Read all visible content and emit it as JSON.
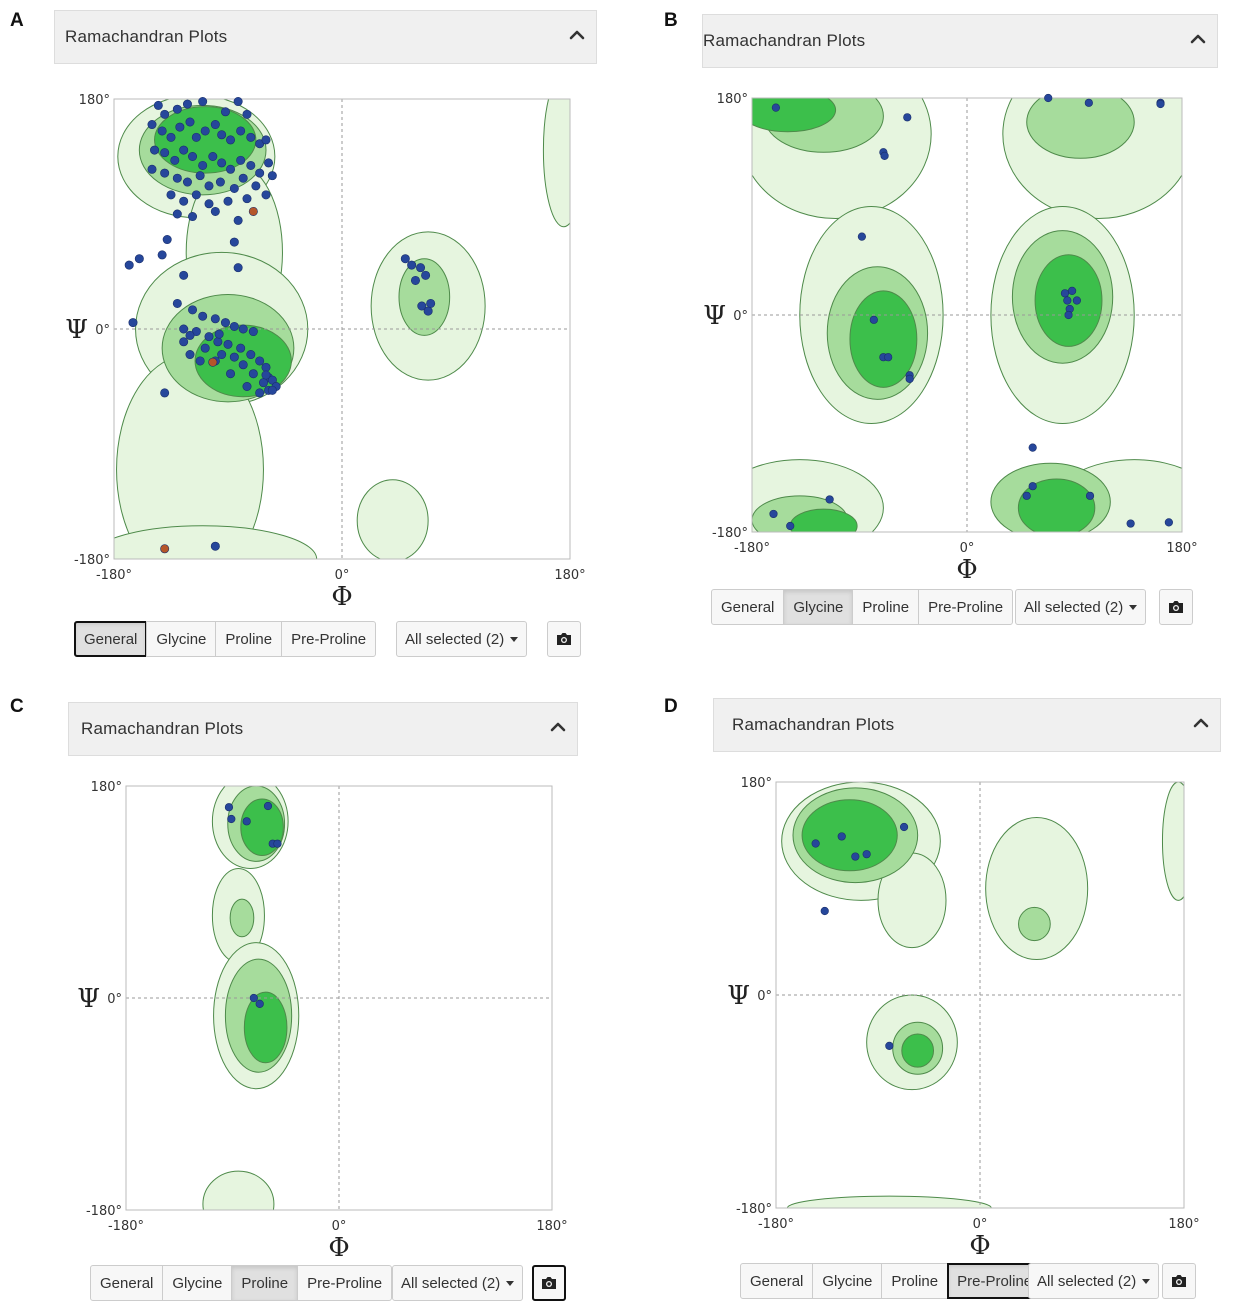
{
  "card_title": "Ramachandran Plots",
  "buttons": [
    "General",
    "Glycine",
    "Proline",
    "Pre-Proline"
  ],
  "dropdown_label": "All selected (2)",
  "axis": {
    "phi_symbol": "Φ",
    "psi_symbol": "Ψ",
    "tick_min": "-180°",
    "tick_zero": "0°",
    "tick_max": "180°"
  },
  "icons": {
    "collapse": "chevron-up-icon",
    "camera": "camera-icon"
  },
  "colors": {
    "region_light": "#e6f5df",
    "region_mid": "#a6dc9c",
    "region_dark": "#3cbf4b",
    "contour": "#4e8a4a",
    "point_favored": "#26479b",
    "point_outlier": "#b5562a"
  },
  "panels": [
    {
      "letter": "A",
      "active_button": "General",
      "chart_data": {
        "type": "scatter",
        "xlabel": "Φ",
        "ylabel": "Ψ",
        "xlim": [
          -180,
          180
        ],
        "ylim": [
          -180,
          180
        ],
        "x_ticks": [
          "-180°",
          "0°",
          "180°"
        ],
        "y_ticks": [
          "-180°",
          "0°",
          "180°"
        ],
        "grid": "dashed lines at 0",
        "series": [
          {
            "name": "",
            "color": "#26479b",
            "points": [
              [
                -145,
                175
              ],
              [
                -140,
                168
              ],
              [
                -130,
                172
              ],
              [
                -122,
                176
              ],
              [
                -110,
                178
              ],
              [
                -82,
                178
              ],
              [
                -92,
                170
              ],
              [
                -75,
                168
              ],
              [
                -150,
                160
              ],
              [
                -142,
                155
              ],
              [
                -135,
                150
              ],
              [
                -128,
                158
              ],
              [
                -120,
                162
              ],
              [
                -115,
                150
              ],
              [
                -108,
                155
              ],
              [
                -100,
                160
              ],
              [
                -95,
                152
              ],
              [
                -88,
                148
              ],
              [
                -80,
                155
              ],
              [
                -72,
                150
              ],
              [
                -65,
                145
              ],
              [
                -60,
                148
              ],
              [
                -148,
                140
              ],
              [
                -140,
                138
              ],
              [
                -132,
                132
              ],
              [
                -125,
                140
              ],
              [
                -118,
                135
              ],
              [
                -110,
                128
              ],
              [
                -102,
                135
              ],
              [
                -95,
                130
              ],
              [
                -88,
                125
              ],
              [
                -80,
                132
              ],
              [
                -72,
                128
              ],
              [
                -65,
                122
              ],
              [
                -58,
                130
              ],
              [
                -150,
                125
              ],
              [
                -140,
                122
              ],
              [
                -130,
                118
              ],
              [
                -122,
                115
              ],
              [
                -112,
                120
              ],
              [
                -105,
                112
              ],
              [
                -96,
                115
              ],
              [
                -85,
                110
              ],
              [
                -78,
                118
              ],
              [
                -68,
                112
              ],
              [
                -55,
                120
              ],
              [
                -135,
                105
              ],
              [
                -125,
                100
              ],
              [
                -115,
                105
              ],
              [
                -105,
                98
              ],
              [
                -90,
                100
              ],
              [
                -75,
                102
              ],
              [
                -60,
                105
              ],
              [
                -130,
                90
              ],
              [
                -118,
                88
              ],
              [
                -100,
                92
              ],
              [
                -82,
                85
              ],
              [
                -85,
                68
              ],
              [
                -138,
                70
              ],
              [
                -142,
                58
              ],
              [
                -160,
                55
              ],
              [
                -168,
                50
              ],
              [
                -125,
                42
              ],
              [
                -82,
                48
              ],
              [
                -130,
                20
              ],
              [
                -118,
                15
              ],
              [
                -110,
                10
              ],
              [
                -100,
                8
              ],
              [
                -92,
                5
              ],
              [
                -85,
                2
              ],
              [
                -78,
                0
              ],
              [
                -70,
                -2
              ],
              [
                -115,
                -2
              ],
              [
                -105,
                -6
              ],
              [
                -98,
                -10
              ],
              [
                -90,
                -12
              ],
              [
                -80,
                -15
              ],
              [
                -72,
                -20
              ],
              [
                -65,
                -25
              ],
              [
                -60,
                -30
              ],
              [
                -58,
                -38
              ],
              [
                -55,
                -40
              ],
              [
                -62,
                -42
              ],
              [
                -70,
                -35
              ],
              [
                -78,
                -28
              ],
              [
                -85,
                -22
              ],
              [
                -95,
                -20
              ],
              [
                -100,
                -25
              ],
              [
                -108,
                -15
              ],
              [
                -120,
                -5
              ],
              [
                -125,
                -10
              ],
              [
                -112,
                -25
              ],
              [
                -88,
                -35
              ],
              [
                -75,
                -45
              ],
              [
                -65,
                -50
              ],
              [
                -58,
                -48
              ],
              [
                -52,
                -45
              ],
              [
                -140,
                -50
              ],
              [
                -165,
                5
              ],
              [
                -100,
                -170
              ],
              [
                -120,
                -20
              ],
              [
                -125,
                0
              ],
              [
                -97,
                -4
              ],
              [
                -60,
                -36
              ],
              [
                -55,
                -48
              ],
              [
                50,
                55
              ],
              [
                55,
                50
              ],
              [
                62,
                48
              ],
              [
                66,
                42
              ],
              [
                58,
                38
              ],
              [
                63,
                18
              ],
              [
                70,
                20
              ],
              [
                68,
                14
              ]
            ]
          },
          {
            "name": "",
            "color": "#b5562a",
            "points": [
              [
                -70,
                92
              ],
              [
                -102,
                -26
              ],
              [
                -140,
                -172
              ]
            ]
          }
        ]
      }
    },
    {
      "letter": "B",
      "active_button": "Glycine",
      "chart_data": {
        "type": "scatter",
        "xlabel": "Φ",
        "ylabel": "Ψ",
        "xlim": [
          -180,
          180
        ],
        "ylim": [
          -180,
          180
        ],
        "x_ticks": [
          "-180°",
          "0°",
          "180°"
        ],
        "y_ticks": [
          "-180°",
          "0°",
          "180°"
        ],
        "grid": "dashed lines at 0",
        "series": [
          {
            "name": "",
            "color": "#26479b",
            "points": [
              [
                -160,
                172
              ],
              [
                -50,
                164
              ],
              [
                -70,
                135
              ],
              [
                -69,
                132
              ],
              [
                -88,
                65
              ],
              [
                -78,
                -4
              ],
              [
                -70,
                -35
              ],
              [
                -66,
                -35
              ],
              [
                -48,
                -50
              ],
              [
                -48,
                -53
              ],
              [
                -162,
                -165
              ],
              [
                -148,
                -175
              ],
              [
                -115,
                -153
              ],
              [
                68,
                180
              ],
              [
                102,
                176
              ],
              [
                162,
                176
              ],
              [
                162,
                175
              ],
              [
                82,
                18
              ],
              [
                88,
                20
              ],
              [
                84,
                12
              ],
              [
                86,
                5
              ],
              [
                92,
                12
              ],
              [
                85,
                0
              ],
              [
                55,
                -110
              ],
              [
                55,
                -142
              ],
              [
                50,
                -150
              ],
              [
                103,
                -150
              ],
              [
                137,
                -173
              ],
              [
                169,
                -172
              ]
            ]
          }
        ]
      }
    },
    {
      "letter": "C",
      "active_button": "Proline",
      "chart_data": {
        "type": "scatter",
        "xlabel": "Φ",
        "ylabel": "Ψ",
        "xlim": [
          -180,
          180
        ],
        "ylim": [
          -180,
          180
        ],
        "x_ticks": [
          "-180°",
          "0°",
          "180°"
        ],
        "y_ticks": [
          "-180°",
          "0°",
          "180°"
        ],
        "grid": "dashed lines at 0",
        "series": [
          {
            "name": "",
            "color": "#26479b",
            "points": [
              [
                -93,
                162
              ],
              [
                -91,
                152
              ],
              [
                -78,
                150
              ],
              [
                -60,
                163
              ],
              [
                -56,
                131
              ],
              [
                -52,
                131
              ],
              [
                -72,
                0
              ],
              [
                -67,
                -5
              ]
            ]
          }
        ]
      }
    },
    {
      "letter": "D",
      "active_button": "Pre-Proline",
      "chart_data": {
        "type": "scatter",
        "xlabel": "Φ",
        "ylabel": "Ψ",
        "xlim": [
          -180,
          180
        ],
        "ylim": [
          -180,
          180
        ],
        "x_ticks": [
          "-180°",
          "0°",
          "180°"
        ],
        "y_ticks": [
          "-180°",
          "0°",
          "180°"
        ],
        "grid": "dashed lines at 0",
        "series": [
          {
            "name": "",
            "color": "#26479b",
            "points": [
              [
                -145,
                128
              ],
              [
                -122,
                134
              ],
              [
                -110,
                117
              ],
              [
                -100,
                119
              ],
              [
                -67,
                142
              ],
              [
                -137,
                71
              ],
              [
                -80,
                -43
              ]
            ]
          }
        ]
      }
    }
  ]
}
